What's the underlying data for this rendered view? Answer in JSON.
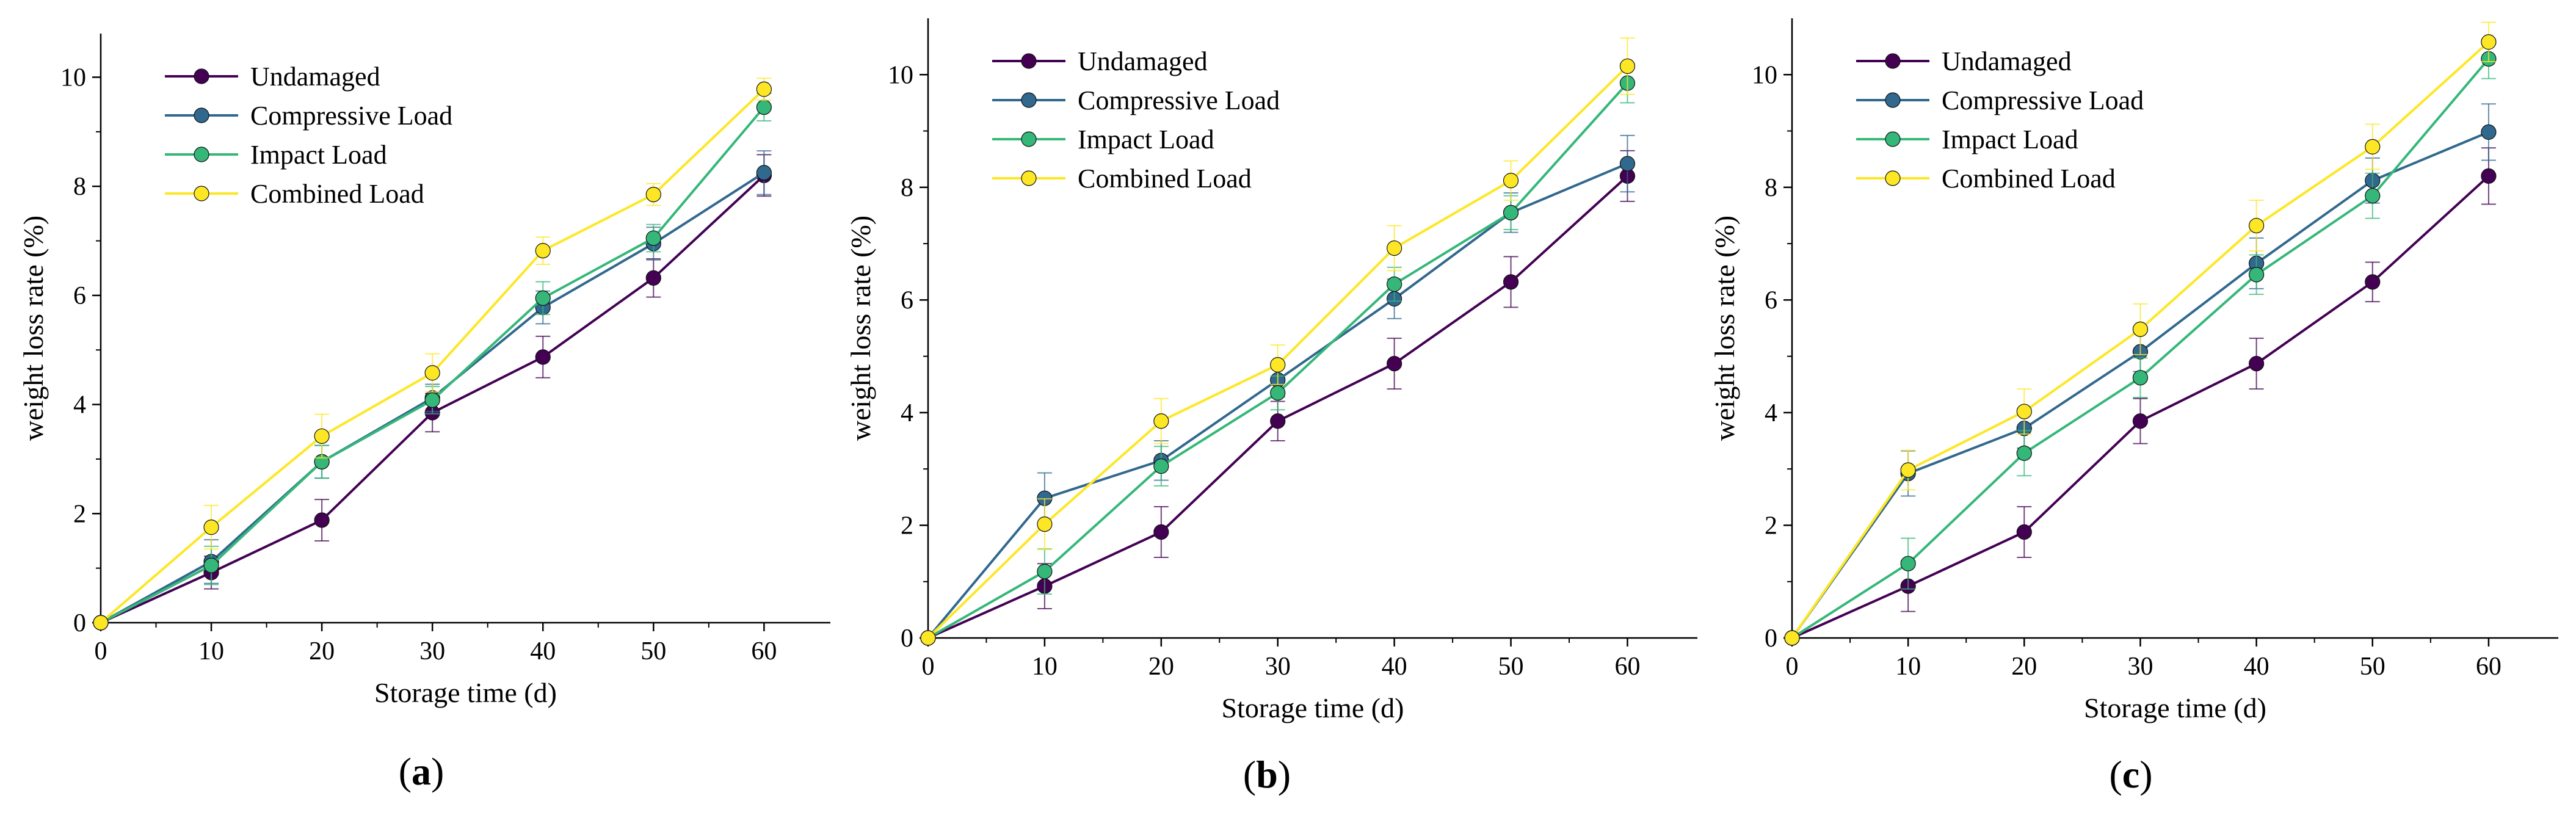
{
  "panel_label_parts": {
    "open": "(",
    "close": ")"
  },
  "colors": {
    "Undamaged": "#440154",
    "Compressive Load": "#31688e",
    "Impact Load": "#35b779",
    "Combined Load": "#fde725"
  },
  "chart_data": [
    {
      "type": "line",
      "panel_label": "a",
      "xlabel": "Storage time (d)",
      "ylabel": "weight loss rate (%)",
      "x": [
        0,
        10,
        20,
        30,
        40,
        50,
        60
      ],
      "xlim": [
        0,
        66
      ],
      "ylim": [
        0,
        11
      ],
      "xticks": [
        0,
        10,
        20,
        30,
        40,
        50,
        60
      ],
      "yticks": [
        0,
        2,
        4,
        6,
        8,
        10
      ],
      "legend_position": "top-left",
      "series": [
        {
          "name": "Undamaged",
          "values": [
            0,
            0.92,
            1.88,
            3.85,
            4.87,
            6.32,
            8.2
          ],
          "errors": [
            0,
            0.3,
            0.38,
            0.35,
            0.38,
            0.35,
            0.38
          ]
        },
        {
          "name": "Compressive Load",
          "values": [
            0,
            1.12,
            2.95,
            4.12,
            5.78,
            6.95,
            8.25
          ],
          "errors": [
            0,
            0.4,
            0.3,
            0.25,
            0.3,
            0.3,
            0.4
          ]
        },
        {
          "name": "Impact Load",
          "values": [
            0,
            1.05,
            2.95,
            4.08,
            5.95,
            7.05,
            9.45
          ],
          "errors": [
            0,
            0.35,
            0.3,
            0.25,
            0.3,
            0.25,
            0.25
          ]
        },
        {
          "name": "Combined Load",
          "values": [
            0,
            1.75,
            3.42,
            4.58,
            6.82,
            7.85,
            9.78
          ],
          "errors": [
            0,
            0.4,
            0.4,
            0.35,
            0.25,
            0.2,
            0.2
          ]
        }
      ]
    },
    {
      "type": "line",
      "panel_label": "b",
      "xlabel": "Storage time (d)",
      "ylabel": "weight loss rate (%)",
      "x": [
        0,
        10,
        20,
        30,
        40,
        50,
        60
      ],
      "xlim": [
        0,
        66
      ],
      "ylim": [
        0,
        11
      ],
      "xticks": [
        0,
        10,
        20,
        30,
        40,
        50,
        60
      ],
      "yticks": [
        0,
        2,
        4,
        6,
        8,
        10
      ],
      "legend_position": "top-left",
      "series": [
        {
          "name": "Undamaged",
          "values": [
            0,
            0.92,
            1.88,
            3.85,
            4.87,
            6.32,
            8.2
          ],
          "errors": [
            0,
            0.4,
            0.45,
            0.35,
            0.45,
            0.45,
            0.45
          ]
        },
        {
          "name": "Compressive Load",
          "values": [
            0,
            2.48,
            3.15,
            4.58,
            6.02,
            7.55,
            8.42
          ],
          "errors": [
            0,
            0.45,
            0.35,
            0.3,
            0.35,
            0.35,
            0.5
          ]
        },
        {
          "name": "Impact Load",
          "values": [
            0,
            1.18,
            3.05,
            4.35,
            6.28,
            7.55,
            9.85
          ],
          "errors": [
            0,
            0.4,
            0.35,
            0.3,
            0.3,
            0.3,
            0.35
          ]
        },
        {
          "name": "Combined Load",
          "values": [
            0,
            2.02,
            3.85,
            4.85,
            6.92,
            8.12,
            10.15
          ],
          "errors": [
            0,
            0.45,
            0.4,
            0.35,
            0.4,
            0.35,
            0.5
          ]
        }
      ]
    },
    {
      "type": "line",
      "panel_label": "c",
      "xlabel": "Storage time (d)",
      "ylabel": "weight loss rate (%)",
      "x": [
        0,
        10,
        20,
        30,
        40,
        50,
        60
      ],
      "xlim": [
        0,
        66
      ],
      "ylim": [
        0,
        11
      ],
      "xticks": [
        0,
        10,
        20,
        30,
        40,
        50,
        60
      ],
      "yticks": [
        0,
        2,
        4,
        6,
        8,
        10
      ],
      "legend_position": "top-left",
      "series": [
        {
          "name": "Undamaged",
          "values": [
            0,
            0.92,
            1.88,
            3.85,
            4.87,
            6.32,
            8.2
          ],
          "errors": [
            0,
            0.45,
            0.45,
            0.4,
            0.45,
            0.35,
            0.5
          ]
        },
        {
          "name": "Compressive Load",
          "values": [
            0,
            2.92,
            3.72,
            5.08,
            6.65,
            8.12,
            8.98
          ],
          "errors": [
            0,
            0.4,
            0.35,
            0.35,
            0.45,
            0.4,
            0.5
          ]
        },
        {
          "name": "Impact Load",
          "values": [
            0,
            1.32,
            3.28,
            4.62,
            6.45,
            7.85,
            10.28
          ],
          "errors": [
            0,
            0.45,
            0.4,
            0.35,
            0.35,
            0.4,
            0.35
          ]
        },
        {
          "name": "Combined Load",
          "values": [
            0,
            2.98,
            4.02,
            5.48,
            7.32,
            8.72,
            10.58
          ],
          "errors": [
            0,
            0.35,
            0.4,
            0.45,
            0.45,
            0.4,
            0.35
          ]
        }
      ]
    }
  ]
}
